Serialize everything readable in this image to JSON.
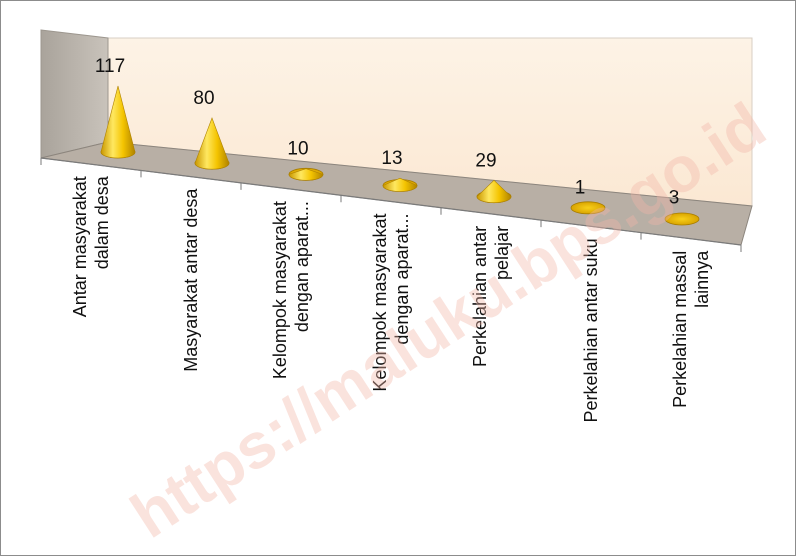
{
  "chart_data": {
    "type": "bar",
    "style": "3d-cone",
    "categories": [
      [
        "Antar masyarakat",
        "dalam desa"
      ],
      [
        "Masyarakat antar desa"
      ],
      [
        "Kelompok masyarakat",
        "dengan aparat..."
      ],
      [
        "Kelompok masyarakat",
        "dengan aparat..."
      ],
      [
        "Perkelahian antar",
        "pelajar"
      ],
      [
        "Perkelahian antar suku"
      ],
      [
        "Perkelahian massal",
        "lainnya"
      ]
    ],
    "values": [
      117,
      80,
      10,
      13,
      29,
      1,
      3
    ],
    "value_labels": [
      "117",
      "80",
      "10",
      "13",
      "29",
      "1",
      "3"
    ],
    "grid": false,
    "legend": "none",
    "colors": {
      "cone_light": "#ffec6e",
      "cone_mid": "#f2c200",
      "cone_dark": "#b98a00",
      "floor": "#b7afa6",
      "back_wall": "#fdf0e2",
      "side_wall": "#b8b2ab"
    }
  },
  "watermark": "https://maluku.bps.go.id"
}
